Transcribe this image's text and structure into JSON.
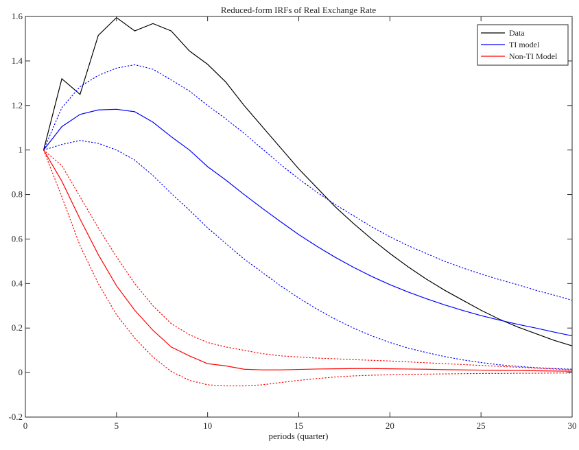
{
  "chart_data": {
    "type": "line",
    "title": "Reduced-form IRFs of Real Exchange Rate",
    "xlabel": "periods (quarter)",
    "ylabel": "",
    "xlim": [
      0,
      30
    ],
    "ylim": [
      -0.2,
      1.6
    ],
    "xticks": [
      0,
      5,
      10,
      15,
      20,
      25,
      30
    ],
    "yticks": [
      -0.2,
      0,
      0.2,
      0.4,
      0.6,
      0.8,
      1,
      1.2,
      1.4,
      1.6
    ],
    "xtick_labels": [
      "0",
      "5",
      "10",
      "15",
      "20",
      "25",
      "30"
    ],
    "ytick_labels": [
      "-0.2",
      "0",
      "0.2",
      "0.4",
      "0.6",
      "0.8",
      "1",
      "1.2",
      "1.4",
      "1.6"
    ],
    "grid": false,
    "legend_position": "top-right",
    "x": [
      1,
      2,
      3,
      4,
      5,
      6,
      7,
      8,
      9,
      10,
      11,
      12,
      13,
      14,
      15,
      16,
      17,
      18,
      19,
      20,
      21,
      22,
      23,
      24,
      25,
      26,
      27,
      28,
      29,
      30
    ],
    "series": [
      {
        "name": "Data",
        "color": "#000000",
        "style": "solid",
        "legend": true,
        "values": [
          1.0,
          1.32,
          1.25,
          1.515,
          1.595,
          1.535,
          1.568,
          1.535,
          1.445,
          1.385,
          1.305,
          1.2,
          1.105,
          1.01,
          0.915,
          0.83,
          0.745,
          0.67,
          0.6,
          0.535,
          0.475,
          0.42,
          0.37,
          0.325,
          0.28,
          0.24,
          0.205,
          0.175,
          0.145,
          0.12
        ]
      },
      {
        "name": "TI model",
        "color": "#0000ff",
        "style": "solid",
        "legend": true,
        "values": [
          1.0,
          1.105,
          1.16,
          1.18,
          1.183,
          1.172,
          1.125,
          1.06,
          1.0,
          0.925,
          0.865,
          0.8,
          0.738,
          0.678,
          0.62,
          0.567,
          0.518,
          0.473,
          0.432,
          0.395,
          0.362,
          0.332,
          0.304,
          0.279,
          0.256,
          0.236,
          0.217,
          0.2,
          0.182,
          0.165
        ]
      },
      {
        "name": "Non-TI Model",
        "color": "#ff0000",
        "style": "solid",
        "legend": true,
        "values": [
          1.0,
          0.86,
          0.69,
          0.53,
          0.39,
          0.28,
          0.19,
          0.115,
          0.075,
          0.04,
          0.03,
          0.015,
          0.012,
          0.012,
          0.014,
          0.016,
          0.017,
          0.018,
          0.018,
          0.017,
          0.016,
          0.015,
          0.013,
          0.012,
          0.011,
          0.01,
          0.009,
          0.008,
          0.007,
          0.006
        ]
      },
      {
        "color": "#0000ff",
        "style": "dotted",
        "legend": false,
        "values": [
          1.0,
          1.19,
          1.285,
          1.335,
          1.368,
          1.383,
          1.363,
          1.315,
          1.265,
          1.2,
          1.14,
          1.075,
          1.005,
          0.935,
          0.87,
          0.81,
          0.755,
          0.705,
          0.655,
          0.61,
          0.57,
          0.535,
          0.5,
          0.47,
          0.443,
          0.418,
          0.395,
          0.37,
          0.348,
          0.325
        ]
      },
      {
        "color": "#0000ff",
        "style": "dotted",
        "legend": false,
        "values": [
          1.0,
          1.025,
          1.043,
          1.03,
          1.0,
          0.955,
          0.885,
          0.805,
          0.73,
          0.65,
          0.58,
          0.51,
          0.45,
          0.39,
          0.335,
          0.285,
          0.24,
          0.2,
          0.165,
          0.135,
          0.11,
          0.09,
          0.072,
          0.057,
          0.045,
          0.035,
          0.028,
          0.022,
          0.018,
          0.015
        ]
      },
      {
        "color": "#ff0000",
        "style": "dotted",
        "legend": false,
        "values": [
          1.0,
          0.93,
          0.79,
          0.65,
          0.52,
          0.4,
          0.3,
          0.22,
          0.17,
          0.135,
          0.115,
          0.1,
          0.085,
          0.075,
          0.07,
          0.065,
          0.062,
          0.058,
          0.055,
          0.052,
          0.048,
          0.044,
          0.04,
          0.036,
          0.032,
          0.028,
          0.024,
          0.02,
          0.016,
          0.012
        ]
      },
      {
        "color": "#ff0000",
        "style": "dotted",
        "legend": false,
        "values": [
          1.0,
          0.79,
          0.57,
          0.4,
          0.26,
          0.155,
          0.07,
          0.005,
          -0.035,
          -0.055,
          -0.06,
          -0.06,
          -0.055,
          -0.045,
          -0.035,
          -0.027,
          -0.02,
          -0.015,
          -0.012,
          -0.01,
          -0.008,
          -0.007,
          -0.006,
          -0.005,
          -0.004,
          -0.004,
          -0.003,
          -0.003,
          -0.002,
          -0.002
        ]
      }
    ]
  }
}
